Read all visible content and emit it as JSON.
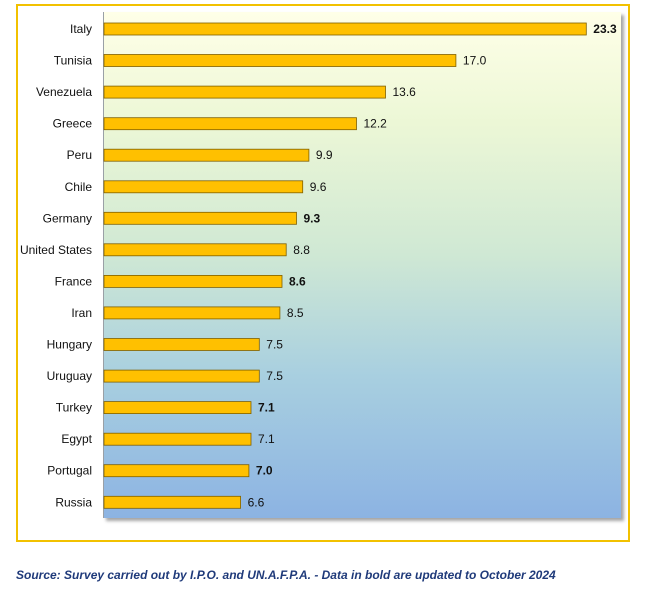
{
  "chart_data": {
    "type": "bar",
    "orientation": "horizontal",
    "categories": [
      "Italy",
      "Tunisia",
      "Venezuela",
      "Greece",
      "Peru",
      "Chile",
      "Germany",
      "United States",
      "France",
      "Iran",
      "Hungary",
      "Uruguay",
      "Turkey",
      "Egypt",
      "Portugal",
      "Russia"
    ],
    "values": [
      23.3,
      17.0,
      13.6,
      12.2,
      9.9,
      9.6,
      9.3,
      8.8,
      8.6,
      8.5,
      7.5,
      7.5,
      7.1,
      7.1,
      7.0,
      6.6
    ],
    "value_labels": [
      "23.3",
      "17.0",
      "13.6",
      "12.2",
      "9.9",
      "9.6",
      "9.3",
      "8.8",
      "8.6",
      "8.5",
      "7.5",
      "7.5",
      "7.1",
      "7.1",
      "7.0",
      "6.6"
    ],
    "bold_labels": [
      true,
      false,
      false,
      false,
      false,
      false,
      true,
      false,
      true,
      false,
      false,
      false,
      true,
      false,
      true,
      false
    ],
    "xlim": [
      0,
      25
    ],
    "bar_color": "#ffc000",
    "bar_edge_color": "#7f6000",
    "grid": false,
    "legend": "none"
  },
  "source_note": "Source: Survey carried out by I.P.O. and UN.A.F.P.A. - Data in bold are updated to October 2024"
}
